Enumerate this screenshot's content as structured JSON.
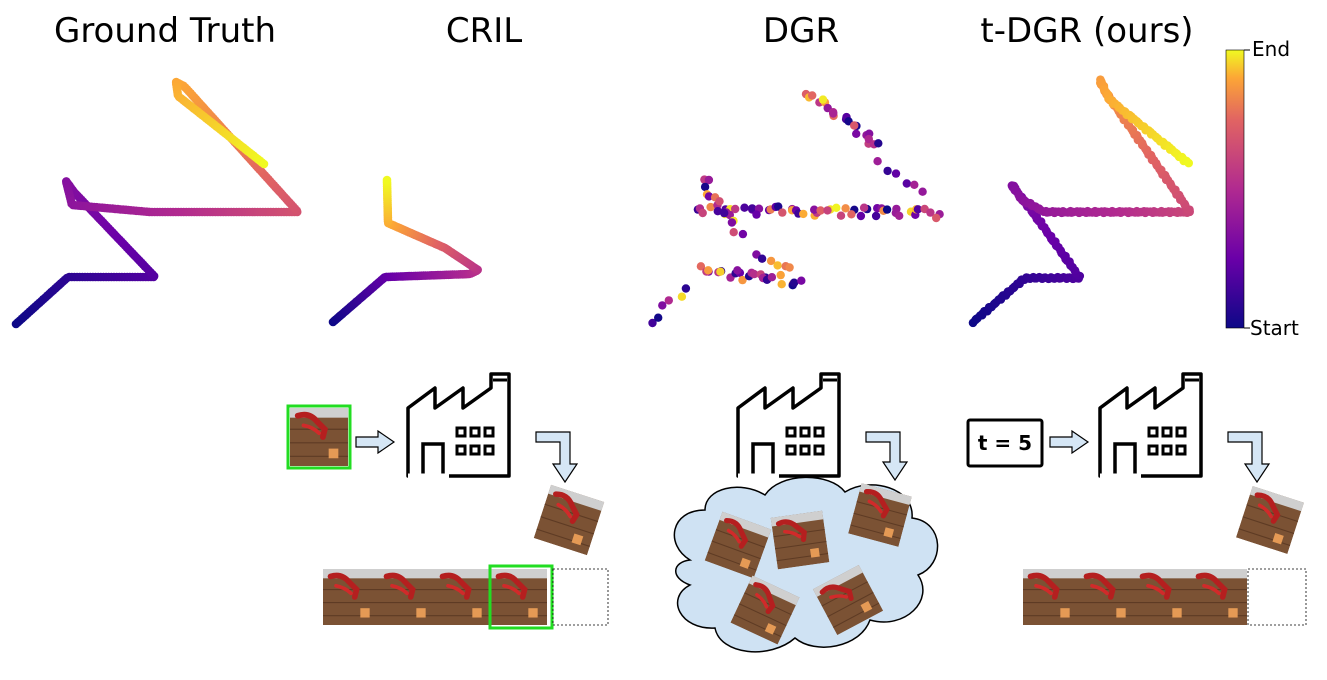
{
  "panels": [
    {
      "key": "ground_truth",
      "title": "Ground Truth"
    },
    {
      "key": "cril",
      "title": "CRIL"
    },
    {
      "key": "dgr",
      "title": "DGR"
    },
    {
      "key": "tdgr",
      "title": "t-DGR (ours)"
    }
  ],
  "colorbar": {
    "top_label": "End",
    "bottom_label": "Start"
  },
  "timestep_box": {
    "label": "t = 5"
  },
  "colors": {
    "start": "#0d0887",
    "mid": "#b12a90",
    "orange": "#f0804e",
    "end": "#f0f921",
    "frame_highlight": "#22dd22",
    "arrow_fill": "#d5e6f5",
    "cloud_fill": "#cfe2f3"
  }
}
